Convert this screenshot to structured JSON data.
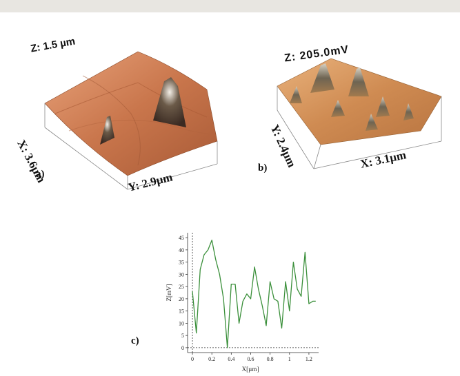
{
  "panel_a": {
    "label": "a)",
    "z_label": "Z: 1.5 µm",
    "x_label": "X: 3.6µm",
    "y_label": "Y: 2.9µm",
    "surface_color": "#c56a3e"
  },
  "panel_b": {
    "label": "b)",
    "z_label": "Z: 205.0mV",
    "x_label": "X: 3.1µm",
    "y_label": "Y: 2.4µm",
    "surface_color": "#d08b4e"
  },
  "panel_c": {
    "label": "c)"
  },
  "colors": {
    "line": "#3a8f3a",
    "axis": "#333333",
    "bar": "#e8e6e1"
  },
  "chart_data": {
    "type": "line",
    "title": "",
    "xlabel": "X[µm]",
    "ylabel": "Z[mV]",
    "xlim": [
      -0.05,
      1.3
    ],
    "ylim": [
      -2,
      47
    ],
    "xticks": [
      "0",
      "0.2",
      "0.4",
      "0.6",
      "0.8",
      "1",
      "1.2"
    ],
    "yticks": [
      "0",
      "5",
      "10",
      "15",
      "20",
      "25",
      "30",
      "35",
      "40",
      "45"
    ],
    "grid": false,
    "series": [
      {
        "x": [
          0.0,
          0.04,
          0.08,
          0.12,
          0.16,
          0.2,
          0.24,
          0.28,
          0.32,
          0.36,
          0.4,
          0.44,
          0.48,
          0.52,
          0.56,
          0.6,
          0.64,
          0.68,
          0.72,
          0.76,
          0.8,
          0.84,
          0.88,
          0.92,
          0.96,
          1.0,
          1.04,
          1.08,
          1.12,
          1.16,
          1.2,
          1.24,
          1.27
        ],
        "y": [
          23,
          6,
          32,
          38,
          40,
          44,
          36,
          30,
          20,
          0,
          26,
          26,
          10,
          19,
          22,
          20,
          33,
          24,
          17,
          9,
          27,
          20,
          19,
          8,
          27,
          15,
          35,
          24,
          21,
          39,
          18,
          19,
          19
        ]
      }
    ]
  }
}
